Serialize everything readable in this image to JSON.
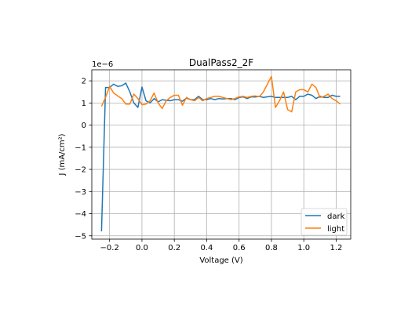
{
  "chart_data": {
    "type": "line",
    "title": "DualPass2_2F",
    "xlabel": "Voltage (V)",
    "ylabel": "J (mA/cm²)",
    "y_multiplier_label": "1e−6",
    "y_scale_exponent": -6,
    "xlim": [
      -0.31,
      1.29
    ],
    "ylim": [
      -5.15,
      2.5
    ],
    "x_ticks": [
      -0.2,
      0.0,
      0.2,
      0.4,
      0.6,
      0.8,
      1.0,
      1.2
    ],
    "x_tick_labels": [
      "−0.2",
      "0.0",
      "0.2",
      "0.4",
      "0.6",
      "0.8",
      "1.0",
      "1.2"
    ],
    "y_ticks": [
      2,
      1,
      0,
      -1,
      -2,
      -3,
      -4,
      -5
    ],
    "y_tick_labels": [
      "2",
      "1",
      "0",
      "−1",
      "−2",
      "−3",
      "−4",
      "−5"
    ],
    "grid": true,
    "legend_position": "bottom-right",
    "series": [
      {
        "name": "dark",
        "color": "#1f77b4",
        "x": [
          -0.25,
          -0.225,
          -0.2,
          -0.175,
          -0.15,
          -0.125,
          -0.1,
          -0.075,
          -0.05,
          -0.025,
          0.0,
          0.025,
          0.05,
          0.075,
          0.1,
          0.125,
          0.15,
          0.175,
          0.2,
          0.225,
          0.25,
          0.275,
          0.3,
          0.325,
          0.35,
          0.375,
          0.4,
          0.425,
          0.45,
          0.475,
          0.5,
          0.525,
          0.55,
          0.575,
          0.6,
          0.625,
          0.65,
          0.675,
          0.7,
          0.725,
          0.75,
          0.775,
          0.8,
          0.825,
          0.85,
          0.875,
          0.9,
          0.925,
          0.95,
          0.975,
          1.0,
          1.025,
          1.05,
          1.075,
          1.1,
          1.125,
          1.15,
          1.175,
          1.2,
          1.225
        ],
        "y": [
          -4.8,
          1.7,
          1.7,
          1.85,
          1.75,
          1.78,
          1.9,
          1.5,
          1.0,
          0.8,
          1.72,
          1.1,
          1.0,
          1.2,
          1.05,
          1.15,
          1.12,
          1.1,
          1.15,
          1.15,
          1.08,
          1.22,
          1.15,
          1.15,
          1.3,
          1.15,
          1.15,
          1.2,
          1.15,
          1.2,
          1.18,
          1.2,
          1.2,
          1.15,
          1.25,
          1.28,
          1.2,
          1.28,
          1.27,
          1.3,
          1.25,
          1.28,
          1.3,
          1.25,
          1.25,
          1.25,
          1.25,
          1.3,
          1.15,
          1.3,
          1.3,
          1.4,
          1.35,
          1.2,
          1.3,
          1.25,
          1.25,
          1.35,
          1.3,
          1.3
        ]
      },
      {
        "name": "light",
        "color": "#ff7f0e",
        "x": [
          -0.25,
          -0.225,
          -0.2,
          -0.175,
          -0.15,
          -0.125,
          -0.1,
          -0.075,
          -0.05,
          -0.025,
          0.0,
          0.025,
          0.05,
          0.075,
          0.1,
          0.125,
          0.15,
          0.175,
          0.2,
          0.225,
          0.25,
          0.275,
          0.3,
          0.325,
          0.35,
          0.375,
          0.4,
          0.425,
          0.45,
          0.475,
          0.5,
          0.525,
          0.55,
          0.575,
          0.6,
          0.625,
          0.65,
          0.675,
          0.7,
          0.725,
          0.75,
          0.775,
          0.8,
          0.825,
          0.85,
          0.875,
          0.9,
          0.925,
          0.95,
          0.975,
          1.0,
          1.025,
          1.05,
          1.075,
          1.1,
          1.125,
          1.15,
          1.175,
          1.2,
          1.225
        ],
        "y": [
          0.85,
          1.25,
          1.75,
          1.45,
          1.32,
          1.2,
          0.95,
          0.95,
          1.4,
          1.2,
          0.92,
          0.95,
          1.1,
          1.45,
          1.0,
          0.75,
          1.1,
          1.25,
          1.35,
          1.35,
          0.9,
          1.25,
          1.15,
          1.1,
          1.25,
          1.1,
          1.2,
          1.25,
          1.3,
          1.3,
          1.25,
          1.2,
          1.15,
          1.2,
          1.28,
          1.3,
          1.25,
          1.3,
          1.32,
          1.28,
          1.5,
          1.85,
          2.2,
          0.8,
          1.1,
          1.5,
          0.7,
          0.6,
          1.5,
          1.6,
          1.6,
          1.5,
          1.85,
          1.7,
          1.25,
          1.3,
          1.4,
          1.2,
          1.1,
          0.95
        ]
      }
    ]
  }
}
